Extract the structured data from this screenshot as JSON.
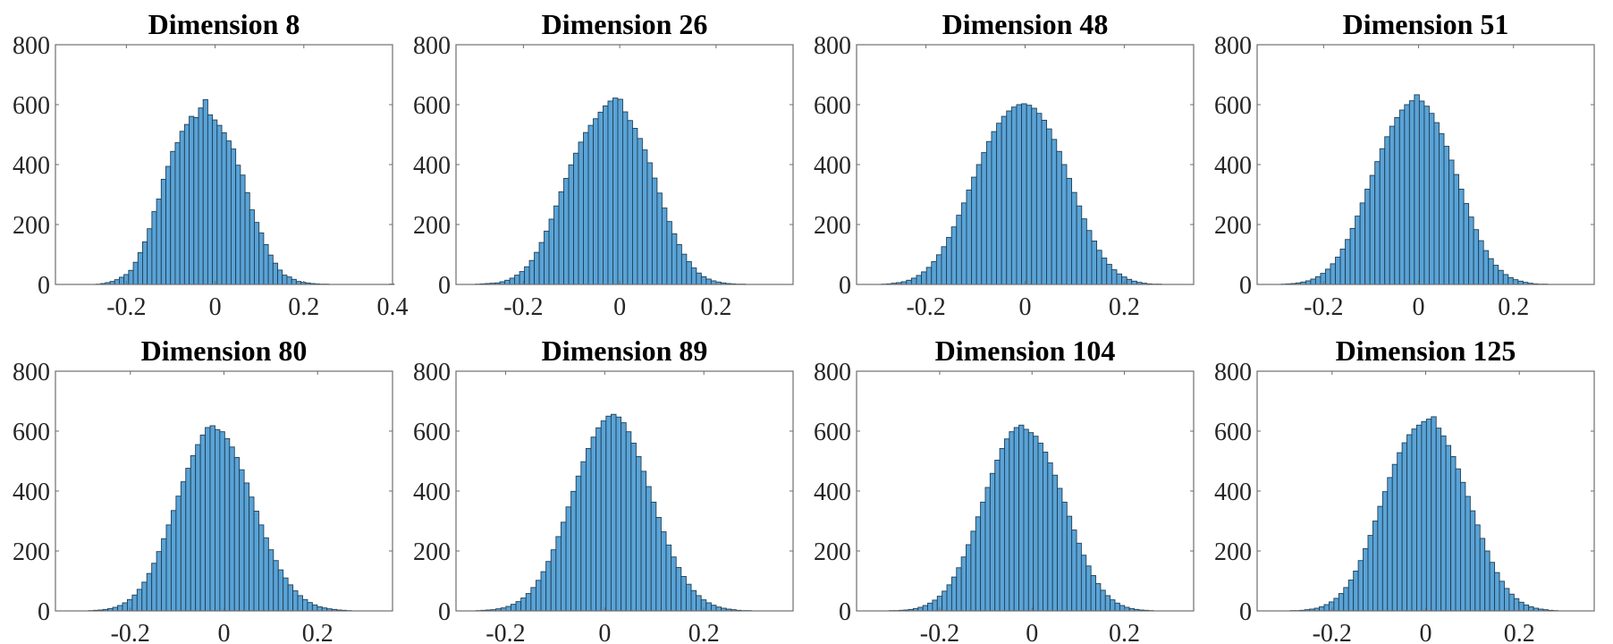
{
  "chart_data": [
    {
      "type": "bar",
      "subtype": "histogram",
      "title": "Dimension 8",
      "xlim": [
        -0.36,
        0.4
      ],
      "ylim": [
        0,
        800
      ],
      "xticks": [
        -0.2,
        0,
        0.2,
        0.4
      ],
      "xtick_labels": [
        "-0.2",
        "0",
        "0.2",
        "0.4"
      ],
      "yticks": [
        0,
        200,
        400,
        600,
        800
      ],
      "ytick_labels": [
        "0",
        "200",
        "400",
        "600",
        "800"
      ],
      "bin_start": -0.3,
      "bin_width": 0.0105,
      "values": [
        0,
        0,
        0,
        1,
        3,
        6,
        10,
        16,
        24,
        33,
        47,
        74,
        106,
        142,
        186,
        243,
        285,
        351,
        394,
        444,
        473,
        511,
        534,
        561,
        557,
        589,
        617,
        566,
        549,
        531,
        506,
        479,
        452,
        398,
        365,
        306,
        249,
        207,
        172,
        133,
        98,
        71,
        48,
        31,
        25,
        17,
        10,
        7,
        5,
        3,
        2,
        1,
        1,
        0,
        0,
        0,
        0,
        0,
        0,
        0,
        0,
        0,
        0,
        0,
        0,
        0,
        1,
        0
      ]
    },
    {
      "type": "bar",
      "subtype": "histogram",
      "title": "Dimension 26",
      "xlim": [
        -0.34,
        0.36
      ],
      "ylim": [
        0,
        800
      ],
      "xticks": [
        -0.2,
        0,
        0.2
      ],
      "xtick_labels": [
        "-0.2",
        "0",
        "0.2"
      ],
      "yticks": [
        0,
        200,
        400,
        600,
        800
      ],
      "ytick_labels": [
        "0",
        "200",
        "400",
        "600",
        "800"
      ],
      "bin_start": -0.31,
      "bin_width": 0.0102,
      "values": [
        0,
        1,
        2,
        3,
        4,
        5,
        9,
        14,
        21,
        31,
        43,
        59,
        80,
        107,
        140,
        178,
        218,
        262,
        309,
        354,
        399,
        438,
        475,
        507,
        531,
        553,
        575,
        596,
        612,
        622,
        618,
        576,
        547,
        521,
        487,
        449,
        406,
        355,
        305,
        255,
        210,
        169,
        133,
        101,
        76,
        55,
        38,
        26,
        18,
        12,
        8,
        5,
        3,
        2,
        1,
        1,
        0
      ]
    },
    {
      "type": "bar",
      "subtype": "histogram",
      "title": "Dimension 48",
      "xlim": [
        -0.34,
        0.34
      ],
      "ylim": [
        0,
        800
      ],
      "xticks": [
        -0.2,
        0,
        0.2
      ],
      "xtick_labels": [
        "-0.2",
        "0",
        "0.2"
      ],
      "yticks": [
        0,
        200,
        400,
        600,
        800
      ],
      "ytick_labels": [
        "0",
        "200",
        "400",
        "600",
        "800"
      ],
      "bin_start": -0.3,
      "bin_width": 0.0101,
      "values": [
        0,
        1,
        2,
        4,
        6,
        9,
        14,
        21,
        30,
        42,
        57,
        76,
        99,
        126,
        157,
        192,
        231,
        272,
        315,
        358,
        400,
        440,
        477,
        510,
        538,
        561,
        579,
        592,
        600,
        603,
        598,
        588,
        571,
        548,
        519,
        484,
        444,
        400,
        354,
        307,
        262,
        219,
        180,
        145,
        114,
        88,
        67,
        49,
        35,
        25,
        17,
        11,
        7,
        4,
        2,
        1,
        1,
        0
      ]
    },
    {
      "type": "bar",
      "subtype": "histogram",
      "title": "Dimension 51",
      "xlim": [
        -0.34,
        0.37
      ],
      "ylim": [
        0,
        800
      ],
      "xticks": [
        -0.2,
        0,
        0.2
      ],
      "xtick_labels": [
        "-0.2",
        "0",
        "0.2"
      ],
      "yticks": [
        0,
        200,
        400,
        600,
        800
      ],
      "ytick_labels": [
        "0",
        "200",
        "400",
        "600",
        "800"
      ],
      "bin_start": -0.3,
      "bin_width": 0.0104,
      "values": [
        0,
        1,
        2,
        3,
        5,
        8,
        12,
        18,
        26,
        37,
        51,
        69,
        91,
        118,
        150,
        187,
        228,
        272,
        318,
        364,
        410,
        453,
        493,
        528,
        557,
        582,
        600,
        613,
        633,
        612,
        595,
        571,
        540,
        503,
        461,
        415,
        367,
        318,
        270,
        225,
        183,
        146,
        113,
        86,
        64,
        47,
        33,
        23,
        16,
        11,
        7,
        4,
        2,
        1,
        1,
        0
      ]
    },
    {
      "type": "bar",
      "subtype": "histogram",
      "title": "Dimension 80",
      "xlim": [
        -0.36,
        0.36
      ],
      "ylim": [
        0,
        800
      ],
      "xticks": [
        -0.2,
        0,
        0.2
      ],
      "xtick_labels": [
        "-0.2",
        "0",
        "0.2"
      ],
      "yticks": [
        0,
        200,
        400,
        600,
        800
      ],
      "ytick_labels": [
        "0",
        "200",
        "400",
        "600",
        "800"
      ],
      "bin_start": -0.3,
      "bin_width": 0.0104,
      "values": [
        0,
        1,
        2,
        3,
        5,
        8,
        12,
        18,
        27,
        38,
        53,
        72,
        96,
        125,
        159,
        198,
        241,
        287,
        335,
        383,
        431,
        476,
        518,
        555,
        587,
        612,
        618,
        605,
        598,
        575,
        547,
        512,
        471,
        427,
        380,
        333,
        287,
        244,
        204,
        168,
        137,
        110,
        87,
        67,
        51,
        38,
        28,
        20,
        14,
        10,
        7,
        5,
        3,
        2,
        1,
        0
      ]
    },
    {
      "type": "bar",
      "subtype": "histogram",
      "title": "Dimension 89",
      "xlim": [
        -0.3,
        0.38
      ],
      "ylim": [
        0,
        800
      ],
      "xticks": [
        -0.2,
        0,
        0.2
      ],
      "xtick_labels": [
        "-0.2",
        "0",
        "0.2"
      ],
      "yticks": [
        0,
        200,
        400,
        600,
        800
      ],
      "ytick_labels": [
        "0",
        "200",
        "400",
        "600",
        "800"
      ],
      "bin_start": -0.27,
      "bin_width": 0.0101,
      "values": [
        0,
        1,
        2,
        3,
        4,
        7,
        10,
        15,
        22,
        31,
        43,
        58,
        78,
        102,
        131,
        165,
        204,
        248,
        296,
        347,
        399,
        450,
        498,
        542,
        580,
        611,
        634,
        650,
        656,
        647,
        628,
        598,
        560,
        515,
        466,
        415,
        363,
        312,
        264,
        220,
        180,
        145,
        115,
        89,
        68,
        51,
        37,
        27,
        19,
        13,
        9,
        6,
        4,
        2,
        1,
        1,
        0
      ]
    },
    {
      "type": "bar",
      "subtype": "histogram",
      "title": "Dimension 104",
      "xlim": [
        -0.38,
        0.35
      ],
      "ylim": [
        0,
        800
      ],
      "xticks": [
        -0.2,
        0,
        0.2
      ],
      "xtick_labels": [
        "-0.2",
        "0",
        "0.2"
      ],
      "yticks": [
        0,
        200,
        400,
        600,
        800
      ],
      "ytick_labels": [
        "0",
        "200",
        "400",
        "600",
        "800"
      ],
      "bin_start": -0.33,
      "bin_width": 0.0104,
      "values": [
        0,
        0,
        1,
        1,
        2,
        3,
        5,
        8,
        12,
        18,
        26,
        36,
        49,
        66,
        87,
        113,
        144,
        180,
        221,
        266,
        314,
        363,
        412,
        459,
        503,
        542,
        574,
        598,
        612,
        620,
        606,
        595,
        583,
        560,
        530,
        494,
        453,
        409,
        363,
        316,
        270,
        226,
        186,
        150,
        118,
        91,
        69,
        51,
        37,
        26,
        18,
        12,
        8,
        5,
        3,
        2,
        1,
        0
      ]
    },
    {
      "type": "bar",
      "subtype": "histogram",
      "title": "Dimension 125",
      "xlim": [
        -0.36,
        0.36
      ],
      "ylim": [
        0,
        800
      ],
      "xticks": [
        -0.2,
        0,
        0.2
      ],
      "xtick_labels": [
        "-0.2",
        "0",
        "0.2"
      ],
      "yticks": [
        0,
        200,
        400,
        600,
        800
      ],
      "ytick_labels": [
        "0",
        "200",
        "400",
        "600",
        "800"
      ],
      "bin_start": -0.3,
      "bin_width": 0.0104,
      "values": [
        0,
        1,
        1,
        2,
        4,
        6,
        9,
        14,
        21,
        30,
        42,
        58,
        78,
        103,
        133,
        168,
        208,
        252,
        300,
        349,
        398,
        445,
        489,
        528,
        561,
        588,
        607,
        620,
        632,
        640,
        648,
        610,
        584,
        552,
        515,
        474,
        429,
        382,
        334,
        287,
        242,
        200,
        162,
        128,
        99,
        75,
        56,
        41,
        29,
        20,
        14,
        9,
        6,
        4,
        2,
        1,
        0
      ]
    }
  ]
}
